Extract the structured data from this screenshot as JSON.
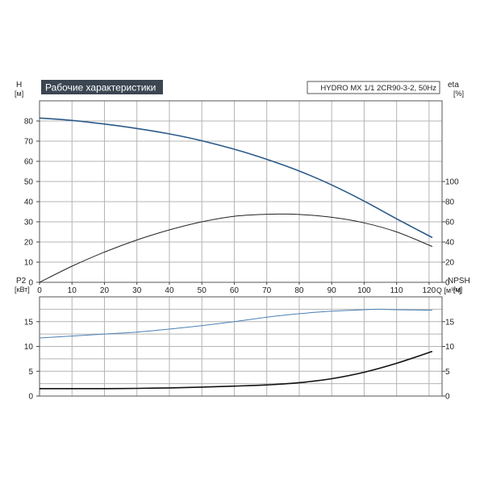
{
  "title": "Рабочие характеристики",
  "model": "HYDRO MX 1/1 2CR90-3-2, 50Hz",
  "colors": {
    "title_bg": "#3b4652",
    "title_text": "#ffffff",
    "grid": "#b4b4b4",
    "frame": "#555555",
    "head_curve": "#2b5a8a",
    "eta_curve": "#222222",
    "p2_curve": "#4a80b5",
    "npsh_curve": "#111111"
  },
  "chart_data": [
    {
      "type": "line",
      "name": "top",
      "xlim": [
        0,
        124
      ],
      "ylim": [
        0,
        90
      ],
      "x_ticks": [
        0,
        10,
        20,
        30,
        40,
        50,
        60,
        70,
        80,
        90,
        100,
        110,
        120
      ],
      "x_tick_labels": [
        "0",
        "10",
        "20",
        "30",
        "40",
        "50",
        "60",
        "70",
        "80",
        "90",
        "100",
        "110",
        "120"
      ],
      "xlabel": "Q [м³/ч]",
      "left_axis": {
        "label_line1": "H",
        "label_line2": "[м]",
        "ticks": [
          0,
          10,
          20,
          30,
          40,
          50,
          60,
          70,
          80
        ],
        "tick_labels": [
          "0",
          "10",
          "20",
          "30",
          "40",
          "50",
          "60",
          "70",
          "80"
        ]
      },
      "right_axis": {
        "label_line1": "eta",
        "label_line2": "[%]",
        "ticks": [
          0,
          20,
          40,
          60,
          80,
          100
        ],
        "tick_labels": [
          "0",
          "20",
          "40",
          "60",
          "80",
          "100"
        ]
      },
      "series": [
        {
          "axis": "left",
          "color_key": "head_curve",
          "x": [
            0,
            10,
            20,
            30,
            40,
            50,
            60,
            70,
            80,
            90,
            100,
            110,
            121
          ],
          "y": [
            81.5,
            80.3,
            78.5,
            76.3,
            73.6,
            70.2,
            66.0,
            61.0,
            55.2,
            48.3,
            40.3,
            31.5,
            22.2
          ]
        },
        {
          "axis": "right",
          "color_key": "eta_curve",
          "x": [
            0,
            10,
            20,
            30,
            40,
            50,
            60,
            70,
            75,
            80,
            90,
            100,
            110,
            121
          ],
          "y": [
            0,
            16,
            30,
            42,
            52,
            60,
            65.5,
            67.5,
            67.7,
            67.3,
            64.5,
            59,
            50,
            35.5
          ]
        }
      ]
    },
    {
      "type": "line",
      "name": "bottom",
      "xlim": [
        0,
        124
      ],
      "ylim": [
        0,
        20
      ],
      "grid": true,
      "left_axis": {
        "label_line1": "P2",
        "label_line2": "[кВт]",
        "ticks": [
          0,
          5,
          10,
          15
        ],
        "tick_labels": [
          "0",
          "5",
          "10",
          "15"
        ]
      },
      "right_axis": {
        "label_line1": "NPSH",
        "label_line2": "[м]",
        "ticks": [
          0,
          5,
          10,
          15
        ],
        "tick_labels": [
          "0",
          "5",
          "10",
          "15"
        ]
      },
      "series": [
        {
          "axis": "left",
          "color_key": "p2_curve",
          "x": [
            0,
            10,
            20,
            30,
            40,
            50,
            60,
            70,
            80,
            90,
            100,
            105,
            110,
            121
          ],
          "y": [
            11.7,
            12.1,
            12.5,
            12.9,
            13.5,
            14.2,
            15.0,
            15.9,
            16.6,
            17.1,
            17.4,
            17.5,
            17.4,
            17.3
          ]
        },
        {
          "axis": "right",
          "color_key": "npsh_curve",
          "x": [
            0,
            10,
            20,
            30,
            40,
            50,
            60,
            70,
            80,
            90,
            100,
            110,
            121
          ],
          "y": [
            1.5,
            1.5,
            1.5,
            1.55,
            1.65,
            1.8,
            2.0,
            2.25,
            2.7,
            3.5,
            4.8,
            6.6,
            9.0
          ]
        }
      ]
    }
  ]
}
